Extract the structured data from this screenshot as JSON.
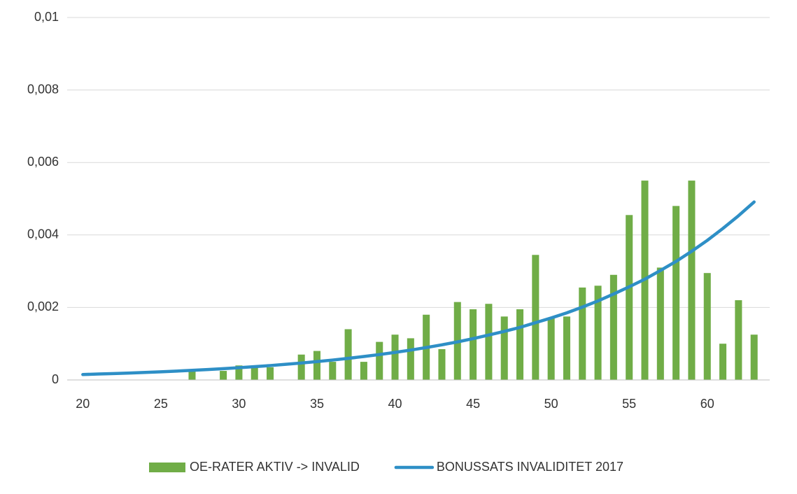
{
  "chart_data": {
    "type": "bar-line",
    "x": [
      20,
      21,
      22,
      23,
      24,
      25,
      26,
      27,
      28,
      29,
      30,
      31,
      32,
      33,
      34,
      35,
      36,
      37,
      38,
      39,
      40,
      41,
      42,
      43,
      44,
      45,
      46,
      47,
      48,
      49,
      50,
      51,
      52,
      53,
      54,
      55,
      56,
      57,
      58,
      59,
      60,
      61,
      62,
      63
    ],
    "series": [
      {
        "name": "OE-RATER AKTIV -> INVALID",
        "type": "bar",
        "color": "#70ad47",
        "values": [
          0,
          0,
          0,
          0,
          0,
          0,
          0,
          0.00025,
          0,
          0.00025,
          0.0004,
          0.00035,
          0.00035,
          0,
          0.0007,
          0.0008,
          0.0005,
          0.0014,
          0.0005,
          0.00105,
          0.00125,
          0.00115,
          0.0018,
          0.00085,
          0.00215,
          0.00195,
          0.0021,
          0.00175,
          0.00195,
          0.00345,
          0.0017,
          0.00175,
          0.00255,
          0.0026,
          0.0029,
          0.00455,
          0.0055,
          0.0031,
          0.0048,
          0.0055,
          0.00295,
          0.001,
          0.0022,
          0.00125
        ]
      },
      {
        "name": "BONUSSATS INVALIDITET 2017",
        "type": "line",
        "color": "#2e8fc6",
        "values": [
          0.00015,
          0.000163,
          0.000176,
          0.000191,
          0.000207,
          0.000225,
          0.000244,
          0.000265,
          0.000287,
          0.000311,
          0.000338,
          0.000366,
          0.000397,
          0.000431,
          0.000467,
          0.000506,
          0.000549,
          0.000596,
          0.000646,
          0.000701,
          0.00076,
          0.000824,
          0.000894,
          0.000969,
          0.00105,
          0.00114,
          0.00124,
          0.00134,
          0.00145,
          0.00158,
          0.00171,
          0.00185,
          0.00201,
          0.00218,
          0.00237,
          0.00257,
          0.00278,
          0.00302,
          0.00327,
          0.00355,
          0.00385,
          0.00418,
          0.00453,
          0.00491
        ]
      }
    ],
    "xlim": [
      19,
      64
    ],
    "xticks": [
      20,
      25,
      30,
      35,
      40,
      45,
      50,
      55,
      60
    ],
    "ylim": [
      0,
      0.01
    ],
    "yticks": [
      0,
      {
        "value": 0.002,
        "label": "0,002"
      },
      {
        "value": 0.004,
        "label": "0,004"
      },
      {
        "value": 0.006,
        "label": "0,006"
      },
      {
        "value": 0.008,
        "label": "0,008"
      },
      {
        "value": 0.01,
        "label": "0,01"
      }
    ],
    "grid": true,
    "legend": "bottom"
  }
}
